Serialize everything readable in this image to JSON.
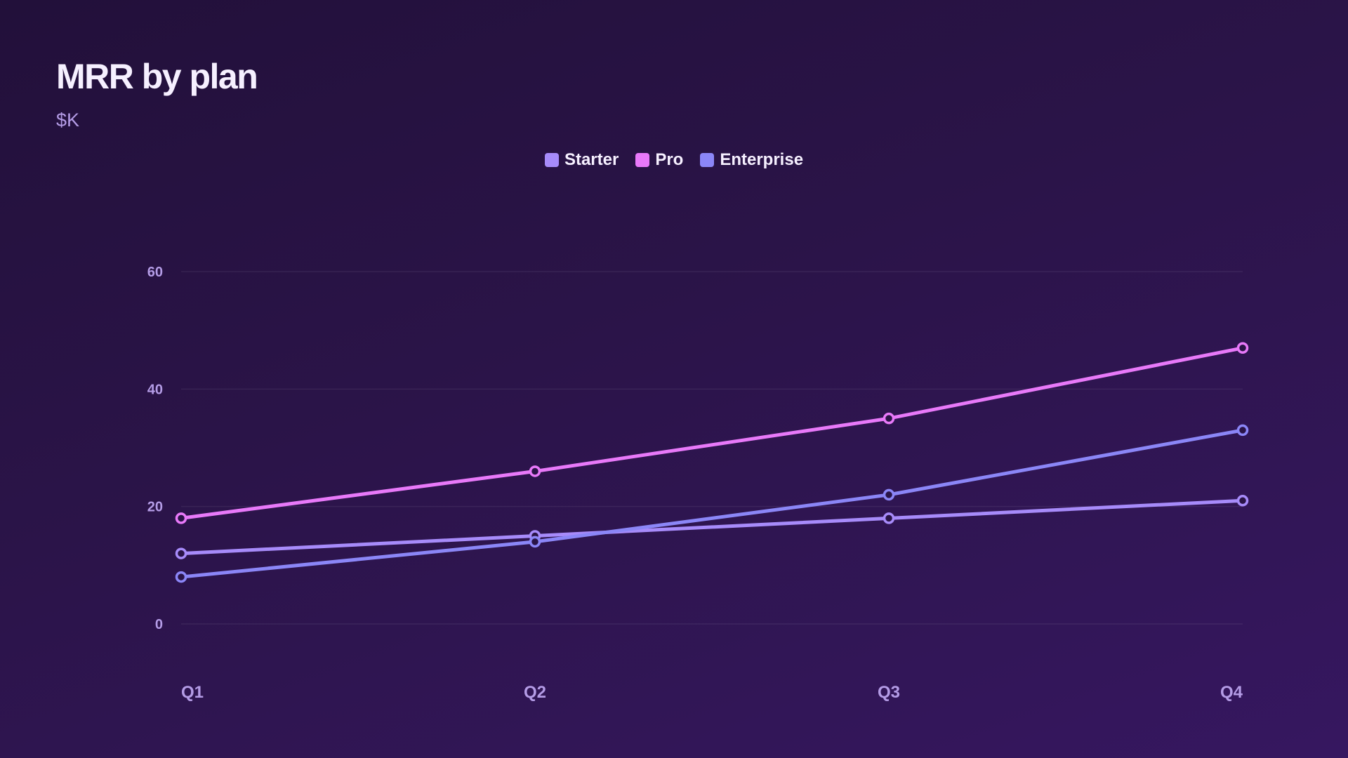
{
  "chart_data": {
    "type": "line",
    "title": "MRR by plan",
    "subtitle": "$K",
    "categories": [
      "Q1",
      "Q2",
      "Q3",
      "Q4"
    ],
    "ylim": [
      0,
      60
    ],
    "yticks": [
      0,
      20,
      40,
      60
    ],
    "grid": true,
    "legend_position": "top-center",
    "series": [
      {
        "name": "Starter",
        "values": [
          12,
          15,
          18,
          21
        ],
        "color": "#a78bfa"
      },
      {
        "name": "Pro",
        "values": [
          18,
          26,
          35,
          47
        ],
        "color": "#e879f9"
      },
      {
        "name": "Enterprise",
        "values": [
          8,
          14,
          22,
          33
        ],
        "color": "#8b86f7"
      }
    ]
  }
}
